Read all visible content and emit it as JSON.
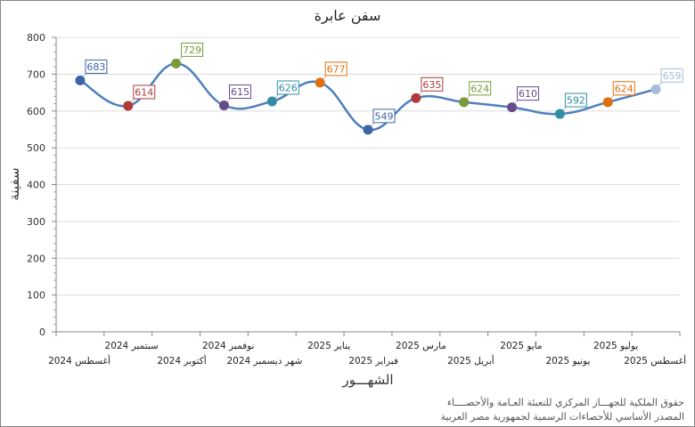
{
  "chart_data": {
    "type": "line",
    "title": "سفن عابرة",
    "xlabel": "الشهـــور",
    "ylabel": "سفينة",
    "ylim": [
      0,
      800
    ],
    "yticks": [
      0,
      100,
      200,
      300,
      400,
      500,
      600,
      700,
      800
    ],
    "grid": true,
    "categories": [
      "أغسطس 2024",
      "سبتمبر 2024",
      "أكتوبر 2024",
      "نوفمبر 2024",
      "شهر ديسمبر 2024",
      "يناير 2025",
      "فبراير 2025",
      "مارس 2025",
      "أبريل 2025",
      "مايو 2025",
      "يونيو 2025",
      "يوليو 2025",
      "أغسطس 2025"
    ],
    "values": [
      683,
      614,
      729,
      615,
      626,
      677,
      549,
      635,
      624,
      610,
      592,
      624,
      659
    ],
    "point_colors": [
      "#3b65a6",
      "#b0393a",
      "#7c9a3a",
      "#664a8a",
      "#2f8ea6",
      "#e0700f",
      "#3b65a6",
      "#b0393a",
      "#7c9a3a",
      "#664a8a",
      "#2f8ea6",
      "#e0700f",
      "#a7bcd9"
    ],
    "line_color": "#4f7fbd"
  },
  "footer": {
    "line1": "حقوق الملكية للجهـــاز المركزي للتعبئة العـامة والأحصــــاء",
    "line2": "المصدر الأساسي للأحصاءات الرسمية لجمهورية مصر العربية"
  }
}
